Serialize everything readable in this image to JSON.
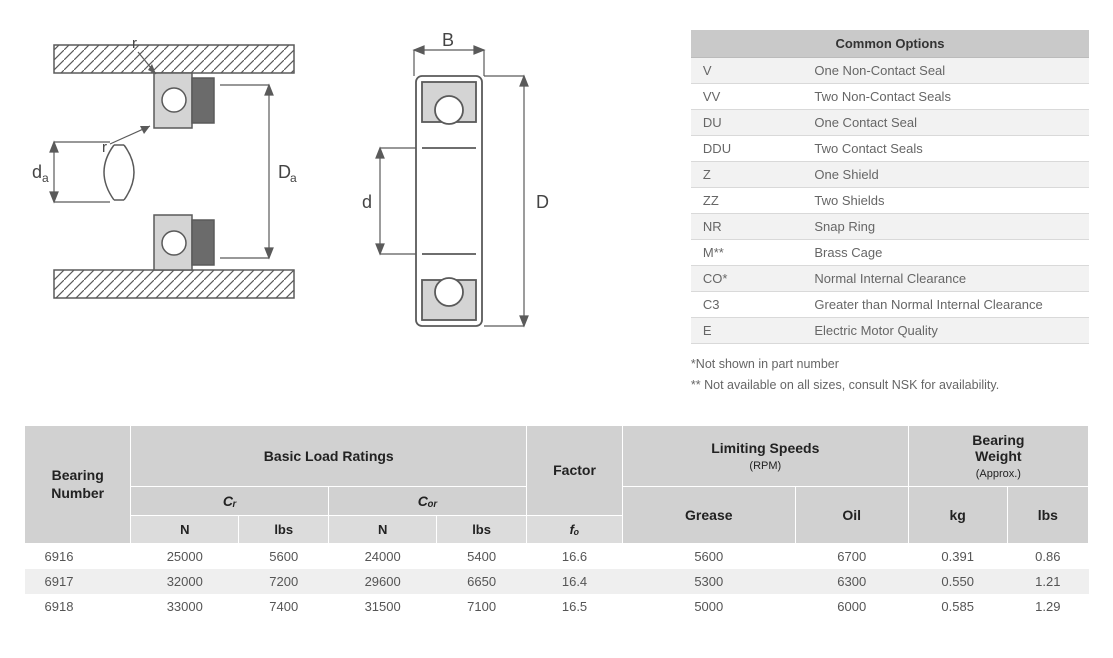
{
  "diagrams": {
    "left": {
      "labels": {
        "r_top": "r",
        "r_inner": "r",
        "da_small": "dₐ",
        "Da_big": "Dₐ"
      },
      "stroke": "#5a5a5a",
      "fill_dark": "#6b6b6b",
      "fill_light": "#d4d4d4",
      "hatch_spacing": 8
    },
    "right": {
      "labels": {
        "B": "B",
        "d": "d",
        "D": "D"
      },
      "stroke": "#5a5a5a",
      "fill_light": "#d4d4d4"
    }
  },
  "common_options": {
    "title": "Common Options",
    "rows": [
      {
        "code": "V",
        "desc": "One Non-Contact Seal"
      },
      {
        "code": "VV",
        "desc": "Two Non-Contact Seals"
      },
      {
        "code": "DU",
        "desc": "One Contact Seal"
      },
      {
        "code": "DDU",
        "desc": "Two Contact Seals"
      },
      {
        "code": "Z",
        "desc": "One Shield"
      },
      {
        "code": "ZZ",
        "desc": "Two Shields"
      },
      {
        "code": "NR",
        "desc": "Snap Ring"
      },
      {
        "code": "M**",
        "desc": "Brass Cage"
      },
      {
        "code": "CO*",
        "desc": "Normal Internal Clearance"
      },
      {
        "code": "C3",
        "desc": "Greater than Normal Internal Clearance"
      },
      {
        "code": "E",
        "desc": "Electric Motor Quality"
      }
    ],
    "footnote1": "*Not shown in part number",
    "footnote2": "** Not available on all sizes, consult NSK for availability."
  },
  "data_table": {
    "headers": {
      "bearing_number": "Bearing\nNumber",
      "basic_load": "Basic Load Ratings",
      "cr": "Cᵣ",
      "cor": "Cₒᵣ",
      "factor": "Factor",
      "limiting_speeds": "Limiting Speeds",
      "rpm": "(RPM)",
      "bearing_weight": "Bearing\nWeight",
      "approx": "(Approx.)",
      "N": "N",
      "lbs": "lbs",
      "fo": "fₒ",
      "grease": "Grease",
      "oil": "Oil",
      "kg": "kg"
    },
    "rows": [
      {
        "num": "6916",
        "cr_n": "25000",
        "cr_lbs": "5600",
        "cor_n": "24000",
        "cor_lbs": "5400",
        "fo": "16.6",
        "grease": "5600",
        "oil": "6700",
        "kg": "0.391",
        "lbs": "0.86"
      },
      {
        "num": "6917",
        "cr_n": "32000",
        "cr_lbs": "7200",
        "cor_n": "29600",
        "cor_lbs": "6650",
        "fo": "16.4",
        "grease": "5300",
        "oil": "6300",
        "kg": "0.550",
        "lbs": "1.21"
      },
      {
        "num": "6918",
        "cr_n": "33000",
        "cr_lbs": "7400",
        "cor_n": "31500",
        "cor_lbs": "7100",
        "fo": "16.5",
        "grease": "5000",
        "oil": "6000",
        "kg": "0.585",
        "lbs": "1.29"
      }
    ]
  },
  "colors": {
    "header_bg": "#d1d1d1",
    "header_bg_light": "#dcdcdc",
    "row_alt": "#efefef",
    "border": "#ffffff",
    "text": "#555555"
  }
}
